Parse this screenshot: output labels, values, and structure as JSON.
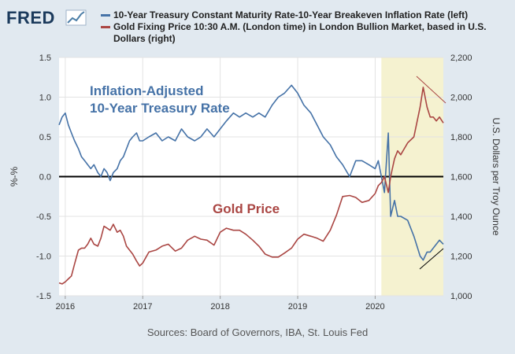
{
  "logo": {
    "text": "FRED",
    "icon": "chart-line-icon"
  },
  "legend": [
    {
      "label": "10-Year Treasury Constant Maturity Rate-10-Year Breakeven Inflation Rate (left)",
      "color": "#4572a7"
    },
    {
      "label": "Gold Fixing Price 10:30 A.M. (London time) in London Bullion Market, based in U.S. Dollars (right)",
      "color": "#aa4643"
    }
  ],
  "source_note": "Sources: Board of Governors, IBA, St. Louis Fed",
  "chart_data": {
    "type": "line",
    "x_ticks": [
      "2016",
      "2017",
      "2018",
      "2019",
      "2020"
    ],
    "x_range": [
      2015.92,
      2020.88
    ],
    "left_axis": {
      "label": "%-%",
      "range": [
        -1.5,
        1.5
      ],
      "ticks": [
        "1.5",
        "1.0",
        "0.5",
        "0.0",
        "-0.5",
        "-1.0",
        "-1.5"
      ]
    },
    "right_axis": {
      "label": "U.S. Dollars per Troy Ounce",
      "range": [
        1000,
        2200
      ],
      "ticks": [
        "2,200",
        "2,000",
        "1,800",
        "1,600",
        "1,400",
        "1,200",
        "1,000"
      ]
    },
    "zero_line": 0,
    "shaded_period": {
      "start": 2020.08,
      "end": 2020.88,
      "color": "#f5f2d0"
    },
    "annotations": [
      {
        "text": "Inflation-Adjusted",
        "color": "#4572a7"
      },
      {
        "text": "10-Year Treasury Rate",
        "color": "#4572a7"
      },
      {
        "text": "Gold Price",
        "color": "#aa4643"
      }
    ],
    "series": [
      {
        "name": "10-Year Treasury Constant Maturity Rate-10-Year Breakeven Inflation Rate (left)",
        "axis": "left",
        "color": "#4572a7",
        "x": [
          2015.92,
          2015.96,
          2016.0,
          2016.04,
          2016.08,
          2016.12,
          2016.17,
          2016.21,
          2016.25,
          2016.29,
          2016.33,
          2016.37,
          2016.42,
          2016.46,
          2016.5,
          2016.54,
          2016.58,
          2016.62,
          2016.67,
          2016.71,
          2016.75,
          2016.79,
          2016.83,
          2016.87,
          2016.92,
          2016.96,
          2017.0,
          2017.08,
          2017.17,
          2017.25,
          2017.33,
          2017.42,
          2017.5,
          2017.58,
          2017.67,
          2017.75,
          2017.83,
          2017.92,
          2018.0,
          2018.08,
          2018.17,
          2018.25,
          2018.33,
          2018.42,
          2018.5,
          2018.58,
          2018.67,
          2018.75,
          2018.83,
          2018.92,
          2019.0,
          2019.08,
          2019.17,
          2019.25,
          2019.33,
          2019.42,
          2019.5,
          2019.58,
          2019.67,
          2019.75,
          2019.83,
          2019.92,
          2020.0,
          2020.04,
          2020.08,
          2020.12,
          2020.17,
          2020.2,
          2020.25,
          2020.29,
          2020.33,
          2020.42,
          2020.5,
          2020.58,
          2020.62,
          2020.67,
          2020.71,
          2020.75,
          2020.79,
          2020.83,
          2020.88
        ],
        "y": [
          0.65,
          0.75,
          0.8,
          0.65,
          0.55,
          0.45,
          0.35,
          0.25,
          0.2,
          0.15,
          0.1,
          0.15,
          0.05,
          0.0,
          0.1,
          0.05,
          -0.05,
          0.05,
          0.1,
          0.2,
          0.25,
          0.35,
          0.45,
          0.5,
          0.55,
          0.45,
          0.45,
          0.5,
          0.55,
          0.45,
          0.5,
          0.45,
          0.6,
          0.5,
          0.45,
          0.5,
          0.6,
          0.5,
          0.6,
          0.7,
          0.8,
          0.75,
          0.8,
          0.75,
          0.8,
          0.75,
          0.9,
          1.0,
          1.05,
          1.15,
          1.05,
          0.9,
          0.8,
          0.65,
          0.5,
          0.4,
          0.25,
          0.15,
          0.0,
          0.2,
          0.2,
          0.15,
          0.1,
          0.2,
          0.0,
          -0.2,
          0.55,
          -0.5,
          -0.3,
          -0.5,
          -0.5,
          -0.55,
          -0.75,
          -1.0,
          -1.05,
          -0.95,
          -0.95,
          -0.9,
          -0.85,
          -0.8,
          -0.85
        ]
      },
      {
        "name": "Gold Fixing Price 10:30 A.M. (London time) in London Bullion Market, based in U.S. Dollars (right)",
        "axis": "right",
        "color": "#aa4643",
        "x": [
          2015.92,
          2015.96,
          2016.0,
          2016.04,
          2016.08,
          2016.12,
          2016.17,
          2016.21,
          2016.25,
          2016.29,
          2016.33,
          2016.37,
          2016.42,
          2016.46,
          2016.5,
          2016.54,
          2016.58,
          2016.62,
          2016.67,
          2016.71,
          2016.75,
          2016.79,
          2016.83,
          2016.87,
          2016.92,
          2016.96,
          2017.0,
          2017.08,
          2017.17,
          2017.25,
          2017.33,
          2017.42,
          2017.5,
          2017.58,
          2017.67,
          2017.75,
          2017.83,
          2017.92,
          2018.0,
          2018.08,
          2018.17,
          2018.25,
          2018.33,
          2018.42,
          2018.5,
          2018.58,
          2018.67,
          2018.75,
          2018.83,
          2018.92,
          2019.0,
          2019.08,
          2019.17,
          2019.25,
          2019.33,
          2019.42,
          2019.5,
          2019.58,
          2019.67,
          2019.75,
          2019.83,
          2019.92,
          2020.0,
          2020.04,
          2020.08,
          2020.12,
          2020.17,
          2020.2,
          2020.25,
          2020.29,
          2020.33,
          2020.42,
          2020.5,
          2020.58,
          2020.62,
          2020.67,
          2020.71,
          2020.75,
          2020.79,
          2020.83,
          2020.88
        ],
        "y": [
          1065,
          1060,
          1070,
          1085,
          1100,
          1160,
          1230,
          1240,
          1240,
          1260,
          1290,
          1260,
          1250,
          1290,
          1350,
          1340,
          1330,
          1360,
          1320,
          1330,
          1300,
          1250,
          1230,
          1210,
          1175,
          1150,
          1165,
          1220,
          1230,
          1250,
          1260,
          1225,
          1240,
          1280,
          1300,
          1285,
          1280,
          1255,
          1320,
          1340,
          1330,
          1330,
          1310,
          1280,
          1250,
          1210,
          1195,
          1195,
          1215,
          1240,
          1285,
          1310,
          1300,
          1290,
          1275,
          1330,
          1405,
          1500,
          1505,
          1495,
          1470,
          1480,
          1515,
          1555,
          1570,
          1600,
          1520,
          1600,
          1690,
          1730,
          1710,
          1770,
          1800,
          1950,
          2050,
          1950,
          1900,
          1900,
          1880,
          1900,
          1870
        ]
      }
    ]
  }
}
